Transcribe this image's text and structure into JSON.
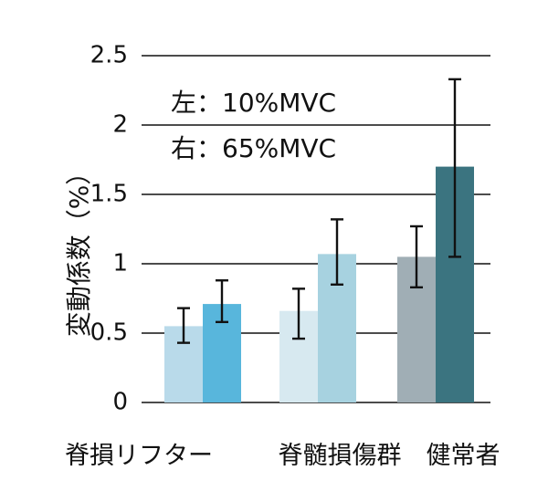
{
  "chart_data": {
    "type": "bar",
    "ylabel": "変動係数（%）",
    "ylim": [
      0,
      2.5
    ],
    "yticks": [
      0,
      0.5,
      1,
      1.5,
      2,
      2.5
    ],
    "ytick_labels": [
      "0",
      "0.5",
      "1",
      "1.5",
      "2",
      "2.5"
    ],
    "grid": true,
    "annotations": [
      "左：10%MVC",
      "右：65%MVC"
    ],
    "categories": [
      "脊損リフター",
      "脊髄損傷群",
      "健常者"
    ],
    "bars": [
      {
        "category": "脊損リフター",
        "side": "左",
        "value": 0.55,
        "err_low": 0.43,
        "err_high": 0.68,
        "color": "#b9daea"
      },
      {
        "category": "脊損リフター",
        "side": "右",
        "value": 0.71,
        "err_low": 0.58,
        "err_high": 0.88,
        "color": "#58b6dc"
      },
      {
        "category": "脊髄損傷群",
        "side": "左",
        "value": 0.66,
        "err_low": 0.46,
        "err_high": 0.82,
        "color": "#d7e9f0"
      },
      {
        "category": "脊髄損傷群",
        "side": "右",
        "value": 1.07,
        "err_low": 0.85,
        "err_high": 1.32,
        "color": "#a7d2e0"
      },
      {
        "category": "健常者",
        "side": "左",
        "value": 1.05,
        "err_low": 0.83,
        "err_high": 1.27,
        "color": "#a0aeb5"
      },
      {
        "category": "健常者",
        "side": "右",
        "value": 1.7,
        "err_low": 1.05,
        "err_high": 2.33,
        "color": "#3b7480"
      }
    ]
  }
}
